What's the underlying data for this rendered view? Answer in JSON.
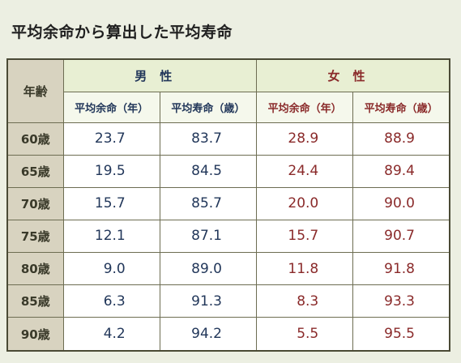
{
  "title": "平均余命から算出した平均寿命",
  "table": {
    "age_header": "年齢",
    "male_header": "男性",
    "female_header": "女性",
    "male_cols": [
      "平均余命（年）",
      "平均寿命（歳）"
    ],
    "female_cols": [
      "平均余命（年）",
      "平均寿命（歳）"
    ],
    "rows": [
      {
        "age": "60歳",
        "male_remaining": "23.7",
        "male_lifespan": "83.7",
        "female_remaining": "28.9",
        "female_lifespan": "88.9"
      },
      {
        "age": "65歳",
        "male_remaining": "19.5",
        "male_lifespan": "84.5",
        "female_remaining": "24.4",
        "female_lifespan": "89.4"
      },
      {
        "age": "70歳",
        "male_remaining": "15.7",
        "male_lifespan": "85.7",
        "female_remaining": "20.0",
        "female_lifespan": "90.0"
      },
      {
        "age": "75歳",
        "male_remaining": "12.1",
        "male_lifespan": "87.1",
        "female_remaining": "15.7",
        "female_lifespan": "90.7"
      },
      {
        "age": "80歳",
        "male_remaining": "9.0",
        "male_lifespan": "89.0",
        "female_remaining": "11.8",
        "female_lifespan": "91.8"
      },
      {
        "age": "85歳",
        "male_remaining": "6.3",
        "male_lifespan": "91.3",
        "female_remaining": "8.3",
        "female_lifespan": "93.3"
      },
      {
        "age": "90歳",
        "male_remaining": "4.2",
        "male_lifespan": "94.2",
        "female_remaining": "5.5",
        "female_lifespan": "95.5"
      }
    ]
  },
  "colors": {
    "male_text": "#22375a",
    "female_text": "#8a2a2a",
    "age_bg": "#d8d3c0",
    "header_bg": "#e8efd3",
    "page_bg": "#ecefe2"
  }
}
